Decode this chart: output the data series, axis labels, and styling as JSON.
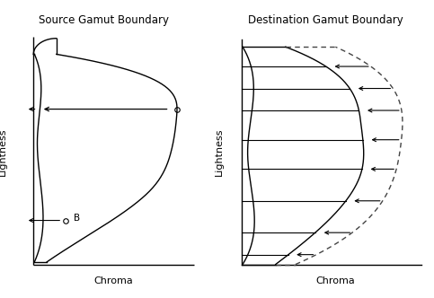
{
  "title_left": "Source Gamut Boundary",
  "title_right": "Destination Gamut Boundary",
  "xlabel": "Chroma",
  "ylabel": "Lightness",
  "bg_color": "#ffffff",
  "line_color": "#000000"
}
